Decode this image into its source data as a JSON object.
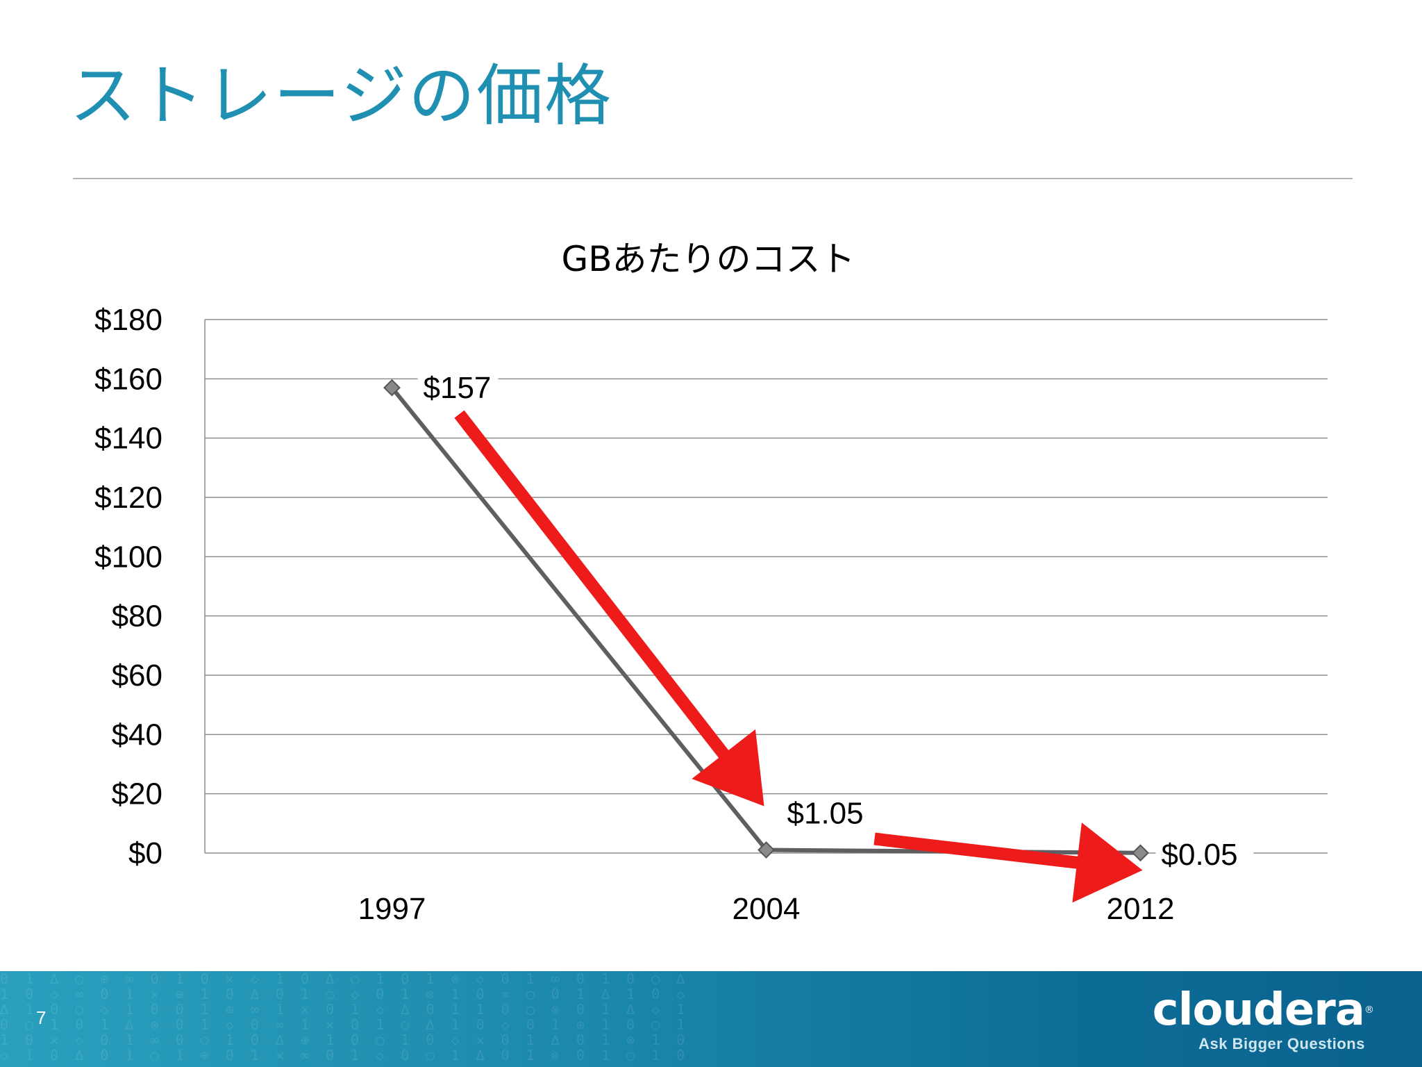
{
  "slide": {
    "title": "ストレージの価格",
    "page_number": "7"
  },
  "brand": {
    "logo_text": "cloudera",
    "tagline": "Ask Bigger Questions",
    "registered_mark": "®"
  },
  "colors": {
    "title": "#1f8fb2",
    "series_line": "#5f5f63",
    "marker": "#8a8a8a",
    "annotation_arrows": "#ee1b1b",
    "gridline": "#8c8c8c",
    "footer_bar": "#1c89ac"
  },
  "chart_data": {
    "type": "line",
    "title": "GBあたりのコスト",
    "xlabel": "",
    "ylabel": "",
    "categories": [
      "1997",
      "2004",
      "2012"
    ],
    "series": [
      {
        "values": [
          157,
          1.05,
          0.05
        ]
      }
    ],
    "data_labels": [
      "$157",
      "$1.05",
      "$0.05"
    ],
    "yticks": [
      "$0",
      "$20",
      "$40",
      "$60",
      "$80",
      "$100",
      "$120",
      "$140",
      "$160",
      "$180"
    ],
    "ylim": [
      0,
      180
    ],
    "ystep": 20,
    "grid": true,
    "legend": "none",
    "annotations": [
      {
        "type": "arrow",
        "color": "red",
        "from_category": "1997",
        "to_category": "2004",
        "meaning": "decline"
      },
      {
        "type": "arrow",
        "color": "red",
        "from_category": "2004",
        "to_category": "2012",
        "meaning": "decline"
      }
    ]
  }
}
